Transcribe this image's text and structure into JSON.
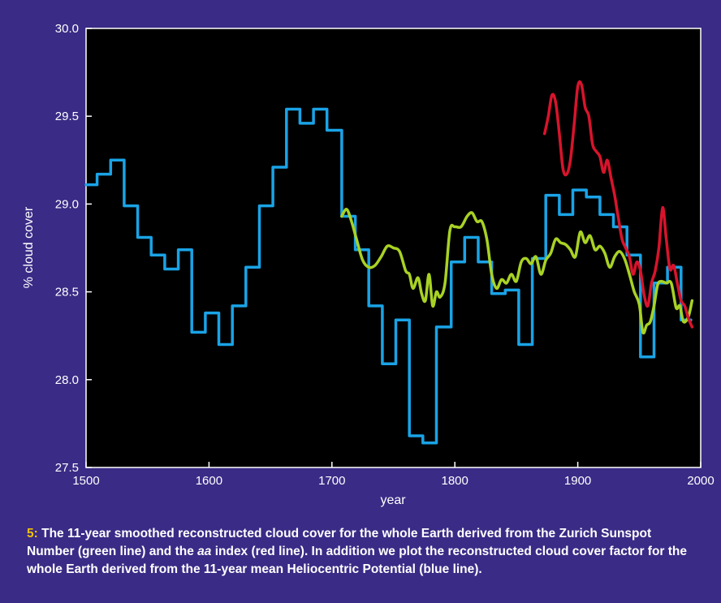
{
  "chart_data": {
    "type": "line",
    "xlabel": "year",
    "ylabel": "% cloud cover",
    "xlim": [
      1500,
      2000
    ],
    "ylim": [
      27.5,
      30.0
    ],
    "xticks": [
      "1500",
      "1600",
      "1700",
      "1800",
      "1900",
      "2000"
    ],
    "yticks": [
      "27.5",
      "28.0",
      "28.5",
      "29.0",
      "29.5",
      "30.0"
    ],
    "grid": false,
    "colors": {
      "background": "#3a2b86",
      "plot_bg": "#000000",
      "frame": "#ffffff",
      "caption_accent": "#f2c200"
    },
    "series": [
      {
        "color": "#1aa3e6",
        "step": true,
        "x": [
          1500,
          1509,
          1520,
          1531,
          1542,
          1553,
          1564,
          1575,
          1586,
          1597,
          1608,
          1619,
          1630,
          1641,
          1652,
          1663,
          1674,
          1685,
          1696,
          1708,
          1719,
          1730,
          1741,
          1752,
          1763,
          1774,
          1785,
          1797,
          1808,
          1819,
          1830,
          1841,
          1852,
          1863,
          1874,
          1885,
          1896,
          1907,
          1918,
          1929,
          1940,
          1951,
          1962,
          1973,
          1984,
          1992
        ],
        "y": [
          29.11,
          29.17,
          29.25,
          28.99,
          28.81,
          28.71,
          28.63,
          28.74,
          28.27,
          28.38,
          28.2,
          28.42,
          28.64,
          28.99,
          29.21,
          29.54,
          29.46,
          29.54,
          29.42,
          28.93,
          28.74,
          28.42,
          28.09,
          28.34,
          27.68,
          27.64,
          28.3,
          28.67,
          28.81,
          28.67,
          28.49,
          28.51,
          28.2,
          28.69,
          29.05,
          28.94,
          29.08,
          29.04,
          28.94,
          28.87,
          28.71,
          28.13,
          28.55,
          28.64,
          28.34,
          28.34
        ]
      },
      {
        "color": "#a8d224",
        "x": [
          1708,
          1712,
          1716,
          1720,
          1725,
          1730,
          1735,
          1740,
          1745,
          1750,
          1755,
          1760,
          1763,
          1766,
          1770,
          1773,
          1776,
          1779,
          1782,
          1785,
          1788,
          1792,
          1796,
          1800,
          1805,
          1810,
          1814,
          1818,
          1822,
          1826,
          1830,
          1834,
          1838,
          1842,
          1846,
          1850,
          1854,
          1858,
          1862,
          1866,
          1870,
          1874,
          1878,
          1882,
          1886,
          1890,
          1894,
          1898,
          1902,
          1906,
          1910,
          1914,
          1918,
          1922,
          1926,
          1930,
          1934,
          1938,
          1942,
          1946,
          1950,
          1953,
          1956,
          1959,
          1962,
          1965,
          1968,
          1972,
          1976,
          1980,
          1983,
          1986,
          1990,
          1993
        ],
        "y": [
          28.93,
          28.97,
          28.9,
          28.8,
          28.68,
          28.64,
          28.65,
          28.7,
          28.76,
          28.75,
          28.73,
          28.62,
          28.6,
          28.52,
          28.58,
          28.49,
          28.45,
          28.6,
          28.42,
          28.5,
          28.47,
          28.55,
          28.85,
          28.87,
          28.87,
          28.93,
          28.95,
          28.9,
          28.9,
          28.8,
          28.6,
          28.52,
          28.57,
          28.55,
          28.6,
          28.56,
          28.67,
          28.69,
          28.66,
          28.7,
          28.6,
          28.68,
          28.72,
          28.8,
          28.78,
          28.77,
          28.74,
          28.7,
          28.84,
          28.78,
          28.82,
          28.74,
          28.76,
          28.72,
          28.64,
          28.7,
          28.73,
          28.69,
          28.6,
          28.5,
          28.43,
          28.27,
          28.31,
          28.33,
          28.42,
          28.54,
          28.56,
          28.55,
          28.55,
          28.41,
          28.42,
          28.33,
          28.36,
          28.45
        ]
      },
      {
        "color": "#d8142c",
        "x": [
          1873,
          1876,
          1879,
          1882,
          1885,
          1888,
          1891,
          1894,
          1897,
          1900,
          1903,
          1906,
          1909,
          1912,
          1915,
          1918,
          1921,
          1924,
          1927,
          1930,
          1933,
          1936,
          1939,
          1942,
          1945,
          1948,
          1951,
          1954,
          1957,
          1960,
          1963,
          1966,
          1969,
          1972,
          1975,
          1978,
          1981,
          1984,
          1987,
          1990,
          1993
        ],
        "y": [
          29.4,
          29.5,
          29.62,
          29.58,
          29.4,
          29.2,
          29.17,
          29.25,
          29.45,
          29.67,
          29.68,
          29.55,
          29.5,
          29.34,
          29.3,
          29.27,
          29.18,
          29.25,
          29.15,
          29.05,
          28.92,
          28.8,
          28.75,
          28.7,
          28.6,
          28.67,
          28.62,
          28.48,
          28.42,
          28.55,
          28.62,
          28.75,
          28.98,
          28.8,
          28.63,
          28.65,
          28.55,
          28.45,
          28.42,
          28.35,
          28.3
        ]
      }
    ]
  },
  "caption": {
    "figure_number": "5:",
    "text": " The 11-year smoothed reconstructed cloud cover for the whole Earth derived from the Zurich Sunspot Number (green line) and the ",
    "aa_index": "aa",
    "text_end": " index (red line). In addition we plot the reconstructed cloud cover factor for the whole Earth derived from the 11-year mean Heliocentric Potential (blue line)."
  }
}
